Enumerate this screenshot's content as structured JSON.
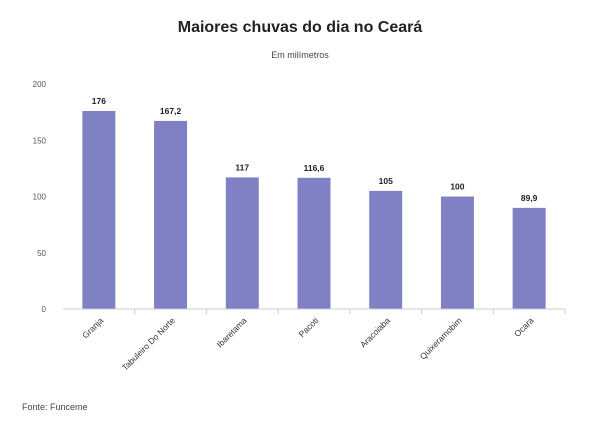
{
  "title": "Maiores chuvas do dia no Ceará",
  "subtitle": "Em milímetros",
  "source": "Fonte: Funceme",
  "chart_data": {
    "type": "bar",
    "categories": [
      "Granja",
      "Tabuleiro Do Norte",
      "Ibaretama",
      "Pacoti",
      "Aracoiaba",
      "Quixeramobim",
      "Ocara"
    ],
    "values": [
      176,
      167.2,
      117,
      116.6,
      105,
      100,
      89.9
    ],
    "value_labels": [
      "176",
      "167,2",
      "117",
      "116,6",
      "105",
      "100",
      "89,9"
    ],
    "title": "Maiores chuvas do dia no Ceará",
    "subtitle": "Em milímetros",
    "ylim": [
      0,
      200
    ],
    "yticks": [
      0,
      50,
      100,
      150,
      200
    ],
    "grid": false,
    "bar_color": "#8080c4"
  }
}
